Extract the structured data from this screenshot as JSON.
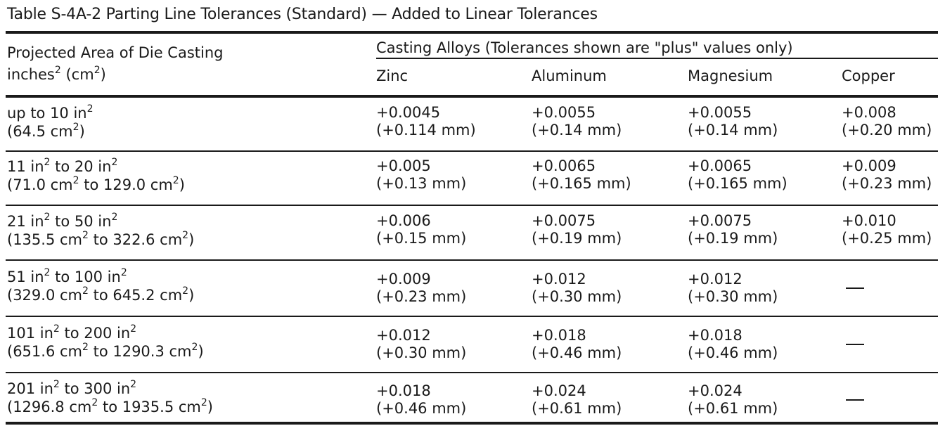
{
  "table": {
    "title": "Table S-4A-2 Parting Line Tolerances (Standard) — Added to Linear Tolerances",
    "header": {
      "area_label_line1": "Projected Area of Die Casting",
      "area_label_line2": "inches",
      "area_label_sup1": "2",
      "area_label_mid": "(cm",
      "area_label_sup2": "2",
      "area_label_end": ")",
      "alloys_label": "Casting Alloys (Tolerances shown are \"plus\" values only)",
      "columns": [
        "Zinc",
        "Aluminum",
        "Magnesium",
        "Copper"
      ]
    },
    "rows": [
      {
        "area": [
          [
            "up to 10 in",
            "2"
          ]
        ],
        "area_metric": [
          [
            "(64.5 cm",
            "2"
          ],
          [
            ")",
            ""
          ]
        ],
        "values": [
          [
            "+0.0045",
            "(+0.114 mm)"
          ],
          [
            "+0.0055",
            "(+0.14 mm)"
          ],
          [
            "+0.0055",
            "(+0.14 mm)"
          ],
          [
            "+0.008",
            "(+0.20 mm)"
          ]
        ]
      },
      {
        "area": [
          [
            "11 in",
            "2"
          ],
          [
            " to 20 in",
            "2"
          ]
        ],
        "area_metric": [
          [
            "(71.0 cm",
            "2"
          ],
          [
            " to 129.0 cm",
            "2"
          ],
          [
            ")",
            ""
          ]
        ],
        "values": [
          [
            "+0.005",
            "(+0.13 mm)"
          ],
          [
            "+0.0065",
            "(+0.165 mm)"
          ],
          [
            "+0.0065",
            "(+0.165 mm)"
          ],
          [
            "+0.009",
            "(+0.23 mm)"
          ]
        ]
      },
      {
        "area": [
          [
            "21 in",
            "2"
          ],
          [
            " to 50 in",
            "2"
          ]
        ],
        "area_metric": [
          [
            "(135.5 cm",
            "2"
          ],
          [
            " to 322.6 cm",
            "2"
          ],
          [
            ")",
            ""
          ]
        ],
        "values": [
          [
            "+0.006",
            "(+0.15 mm)"
          ],
          [
            "+0.0075",
            "(+0.19 mm)"
          ],
          [
            "+0.0075",
            "(+0.19 mm)"
          ],
          [
            "+0.010",
            "(+0.25 mm)"
          ]
        ]
      },
      {
        "area": [
          [
            "51 in",
            "2"
          ],
          [
            " to 100 in",
            "2"
          ]
        ],
        "area_metric": [
          [
            "(329.0 cm",
            "2"
          ],
          [
            " to 645.2 cm",
            "2"
          ],
          [
            ")",
            ""
          ]
        ],
        "values": [
          [
            "+0.009",
            "(+0.23 mm)"
          ],
          [
            "+0.012",
            "(+0.30 mm)"
          ],
          [
            "+0.012",
            "(+0.30 mm)"
          ],
          null
        ]
      },
      {
        "area": [
          [
            "101 in",
            "2"
          ],
          [
            " to 200 in",
            "2"
          ]
        ],
        "area_metric": [
          [
            "(651.6 cm",
            "2"
          ],
          [
            " to 1290.3 cm",
            "2"
          ],
          [
            ")",
            ""
          ]
        ],
        "values": [
          [
            "+0.012",
            "(+0.30 mm)"
          ],
          [
            "+0.018",
            "(+0.46 mm)"
          ],
          [
            "+0.018",
            "(+0.46 mm)"
          ],
          null
        ]
      },
      {
        "area": [
          [
            "201 in",
            "2"
          ],
          [
            " to 300 in",
            "2"
          ]
        ],
        "area_metric": [
          [
            "(1296.8 cm",
            "2"
          ],
          [
            " to 1935.5 cm",
            "2"
          ],
          [
            ")",
            ""
          ]
        ],
        "values": [
          [
            "+0.018",
            "(+0.46 mm)"
          ],
          [
            "+0.024",
            "(+0.61 mm)"
          ],
          [
            "+0.024",
            "(+0.61 mm)"
          ],
          null
        ]
      }
    ]
  }
}
